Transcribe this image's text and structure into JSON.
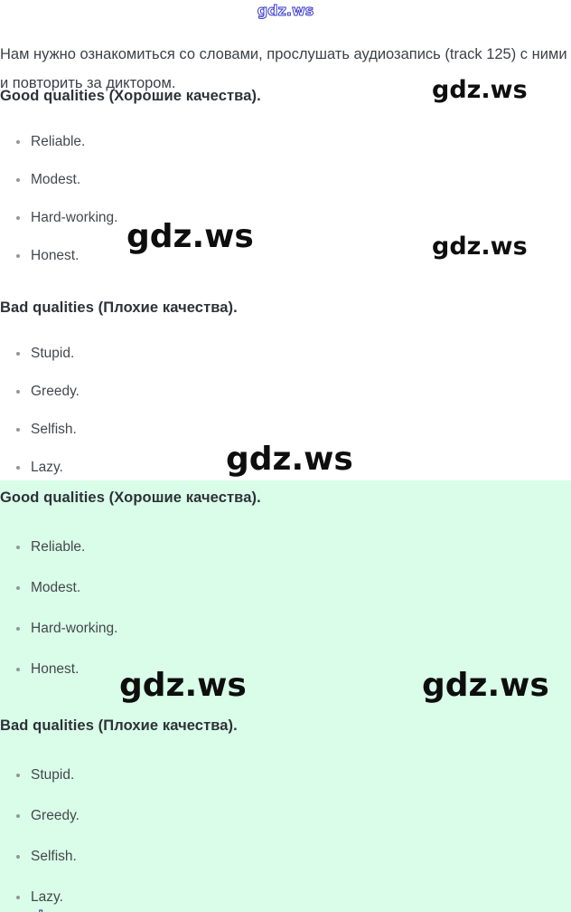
{
  "colors": {
    "page_background": "#ffffff",
    "highlight_background": "#d9fde9",
    "body_text": "#3d4147",
    "heading_text": "#2e3138",
    "watermark_black": "#0e0e0e",
    "watermark_blue_outline": "#3838cc"
  },
  "watermark": {
    "text": "gdz.ws"
  },
  "intro": {
    "text": "Нам нужно ознакомиться со словами, прослушать аудиозапись (track 125) с ними и повторить за диктором."
  },
  "white_section": {
    "good_heading": "Good qualities (Хорошие качества).",
    "good_items": [
      "Reliable.",
      "Modest.",
      "Hard-working.",
      "Honest."
    ],
    "bad_heading": "Bad qualities (Плохие качества).",
    "bad_items": [
      "Stupid.",
      "Greedy.",
      "Selfish.",
      "Lazy."
    ]
  },
  "green_section": {
    "good_heading": "Good qualities (Хорошие качества).",
    "good_items": [
      "Reliable.",
      "Modest.",
      "Hard-working.",
      "Honest."
    ],
    "bad_heading": "Bad qualities (Плохие качества).",
    "bad_items": [
      "Stupid.",
      "Greedy.",
      "Selfish.",
      "Lazy."
    ]
  }
}
